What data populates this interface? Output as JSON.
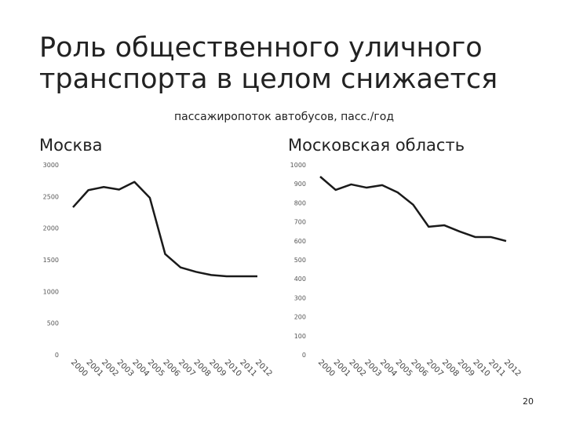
{
  "title_lines": [
    "Роль общественного уличного",
    "транспорта в целом снижается"
  ],
  "subtitle": "пассажиропоток автобусов, пасс./год",
  "page_number": "20",
  "chart_data": [
    {
      "type": "line",
      "title": "Москва",
      "categories": [
        "2000",
        "2001",
        "2002",
        "2003",
        "2004",
        "2005",
        "2006",
        "2007",
        "2008",
        "2009",
        "2010",
        "2011",
        "2012"
      ],
      "values": [
        2330,
        2600,
        2650,
        2610,
        2730,
        2480,
        1590,
        1380,
        1310,
        1260,
        1240,
        1240,
        1240
      ],
      "color": "#1a1a1a",
      "ylim": [
        0,
        3000
      ],
      "yticks": [
        0,
        500,
        1000,
        1500,
        2000,
        2500,
        3000
      ]
    },
    {
      "type": "line",
      "title": "Московская область",
      "categories": [
        "2000",
        "2001",
        "2002",
        "2003",
        "2004",
        "2005",
        "2006",
        "2007",
        "2008",
        "2009",
        "2010",
        "2011",
        "2012"
      ],
      "values": [
        938,
        868,
        897,
        880,
        893,
        855,
        790,
        674,
        682,
        649,
        620,
        620,
        599
      ],
      "color": "#1a1a1a",
      "ylim": [
        0,
        1000
      ],
      "yticks": [
        0,
        100,
        200,
        300,
        400,
        500,
        600,
        700,
        800,
        900,
        1000
      ]
    }
  ]
}
